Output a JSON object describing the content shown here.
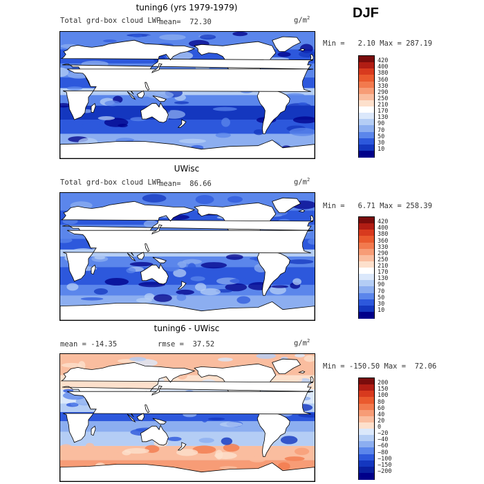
{
  "season": "DJF",
  "panels": [
    {
      "title": "tuning6 (yrs 1979-1979)",
      "left_label": "Total grd-box cloud LWP",
      "mean_label": "mean=  72.30",
      "units": "g/m",
      "units_sup": "2",
      "minmax": "Min =   2.10 Max = 287.19",
      "kind": "lwp",
      "colorbar": {
        "labels": [
          "420",
          "400",
          "380",
          "360",
          "330",
          "290",
          "250",
          "210",
          "170",
          "130",
          "90",
          "70",
          "50",
          "30",
          "10"
        ],
        "colors": [
          "#7a0c0c",
          "#b11d14",
          "#d83a1e",
          "#ea5a2e",
          "#f27a4e",
          "#f79c76",
          "#fabd9f",
          "#fde0cc",
          "#ffffff",
          "#dbe8fb",
          "#b4cdf5",
          "#8caef0",
          "#5b86eb",
          "#2d58dc",
          "#1437bf",
          "#00008a"
        ]
      }
    },
    {
      "title": "UWisc",
      "left_label": "Total grd-box cloud LWP",
      "mean_label": "mean=  86.66",
      "units": "g/m",
      "units_sup": "2",
      "minmax": "Min =   6.71 Max = 258.39",
      "kind": "lwp",
      "colorbar": {
        "labels": [
          "420",
          "400",
          "380",
          "360",
          "330",
          "290",
          "250",
          "210",
          "170",
          "130",
          "90",
          "70",
          "50",
          "30",
          "10"
        ],
        "colors": [
          "#7a0c0c",
          "#b11d14",
          "#d83a1e",
          "#ea5a2e",
          "#f27a4e",
          "#f79c76",
          "#fabd9f",
          "#fde0cc",
          "#ffffff",
          "#dbe8fb",
          "#b4cdf5",
          "#8caef0",
          "#5b86eb",
          "#2d58dc",
          "#1437bf",
          "#00008a"
        ]
      }
    },
    {
      "title": "tuning6 - UWisc",
      "left_label": "mean = -14.35",
      "mean_label": "rmse =  37.52",
      "units": "g/m",
      "units_sup": "2",
      "minmax": "Min = -150.50 Max =  72.06",
      "kind": "diff",
      "colorbar": {
        "labels": [
          "200",
          "150",
          "100",
          "80",
          "60",
          "40",
          "20",
          "0",
          "−20",
          "−40",
          "−60",
          "−80",
          "−100",
          "−150",
          "−200"
        ],
        "colors": [
          "#7a0c0c",
          "#b11d14",
          "#d83a1e",
          "#ea5a2e",
          "#f27a4e",
          "#f79c76",
          "#fabd9f",
          "#fde0cc",
          "#dbe8fb",
          "#b4cdf5",
          "#8caef0",
          "#5b86eb",
          "#2d58dc",
          "#1437bf",
          "#0a20a0",
          "#00008a"
        ]
      }
    }
  ]
}
